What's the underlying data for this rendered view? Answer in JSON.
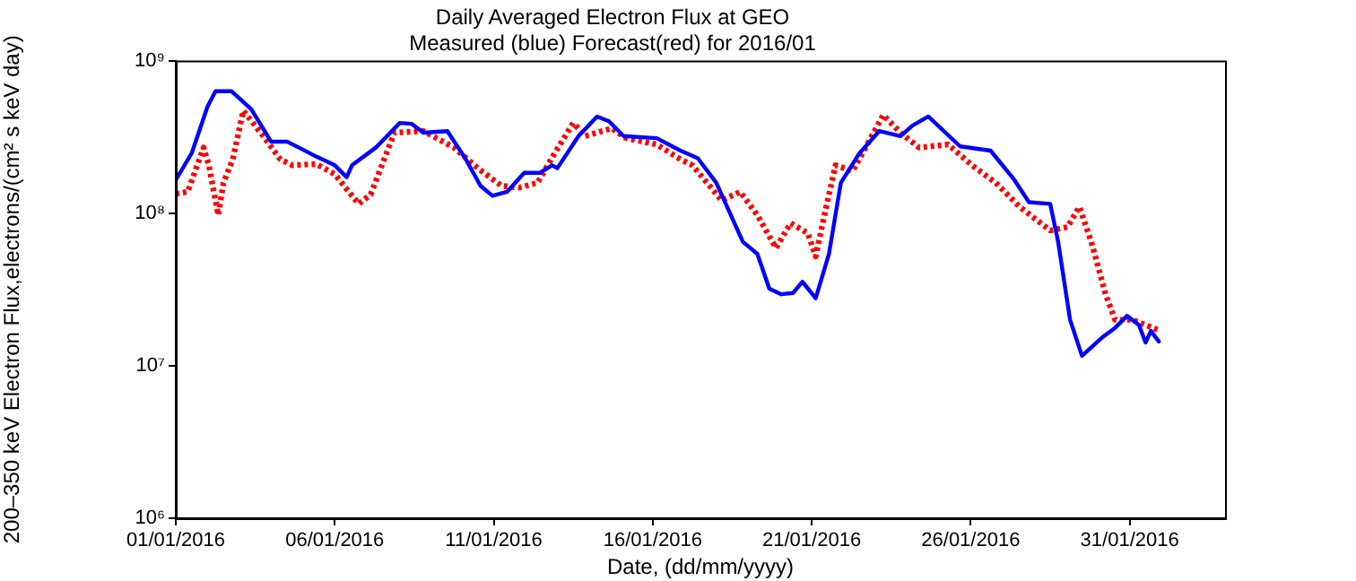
{
  "chart_data": {
    "type": "line",
    "title": "Daily Averaged Electron Flux at GEO",
    "subtitle": "Measured (blue) Forecast(red) for 2016/01",
    "xlabel": "Date, (dd/mm/yyyy)",
    "ylabel": "200–350 keV Electron Flux,electrons/(cm² s keV day)",
    "log": "y",
    "grid": false,
    "legend": false,
    "marker": "none",
    "xlim": [
      "2016-01-01",
      "2016-02-03"
    ],
    "xticks": [
      {
        "value": "2016-01-01",
        "label": "01/01/2016"
      },
      {
        "value": "2016-01-06",
        "label": "06/01/2016"
      },
      {
        "value": "2016-01-11",
        "label": "11/01/2016"
      },
      {
        "value": "2016-01-16",
        "label": "16/01/2016"
      },
      {
        "value": "2016-01-21",
        "label": "21/01/2016"
      },
      {
        "value": "2016-01-26",
        "label": "26/01/2016"
      },
      {
        "value": "2016-01-31",
        "label": "31/01/2016"
      }
    ],
    "ylim": [
      1000000,
      1000000000
    ],
    "yticks": [
      {
        "value": 1000000,
        "label": "10⁶"
      },
      {
        "value": 10000000,
        "label": "10⁷"
      },
      {
        "value": 100000000,
        "label": "10⁸"
      },
      {
        "value": 1000000000,
        "label": "10⁹"
      }
    ],
    "series": [
      {
        "color": "#0000ff",
        "line_style": "solid",
        "x": [
          "2016-01-01T00:00",
          "2016-01-01T12:00",
          "2016-01-02T00:00",
          "2016-01-02T06:00",
          "2016-01-02T18:00",
          "2016-01-03T09:00",
          "2016-01-04T00:00",
          "2016-01-04T12:00",
          "2016-01-04T21:00",
          "2016-01-05T10:00",
          "2016-01-06T00:00",
          "2016-01-06T09:00",
          "2016-01-06T13:00",
          "2016-01-07T07:00",
          "2016-01-08T01:00",
          "2016-01-08T10:00",
          "2016-01-08T19:00",
          "2016-01-09T13:00",
          "2016-01-10T03:00",
          "2016-01-10T14:00",
          "2016-01-10T23:00",
          "2016-01-11T10:00",
          "2016-01-11T23:00",
          "2016-01-12T11:00",
          "2016-01-12T20:00",
          "2016-01-13T00:00",
          "2016-01-13T16:00",
          "2016-01-14T06:00",
          "2016-01-14T15:00",
          "2016-01-15T02:00",
          "2016-01-16T03:00",
          "2016-01-16T21:00",
          "2016-01-17T10:00",
          "2016-01-18T00:00",
          "2016-01-18T20:00",
          "2016-01-19T07:00",
          "2016-01-19T16:00",
          "2016-01-20T01:00",
          "2016-01-20T10:00",
          "2016-01-20T17:00",
          "2016-01-21T03:00",
          "2016-01-21T13:00",
          "2016-01-21T22:00",
          "2016-01-22T12:00",
          "2016-01-23T03:00",
          "2016-01-23T19:00",
          "2016-01-24T04:00",
          "2016-01-24T16:00",
          "2016-01-25T16:00",
          "2016-01-26T15:00",
          "2016-01-27T09:00",
          "2016-01-27T20:00",
          "2016-01-28T12:00",
          "2016-01-28T18:00",
          "2016-01-29T03:00",
          "2016-01-29T12:00",
          "2016-01-30T04:00",
          "2016-01-30T13:00",
          "2016-01-30T22:00",
          "2016-01-31T07:00",
          "2016-01-31T12:00",
          "2016-01-31T16:00",
          "2016-01-31T22:00"
        ],
        "values": [
          165000000.0,
          247000000.0,
          500000000.0,
          630000000.0,
          630000000.0,
          480000000.0,
          294000000.0,
          294000000.0,
          269000000.0,
          235000000.0,
          206000000.0,
          172000000.0,
          206000000.0,
          269000000.0,
          390000000.0,
          385000000.0,
          337000000.0,
          345000000.0,
          225000000.0,
          151000000.0,
          130000000.0,
          138000000.0,
          184000000.0,
          184000000.0,
          206000000.0,
          197000000.0,
          320000000.0,
          430000000.0,
          400000000.0,
          320000000.0,
          310000000.0,
          257000000.0,
          229000000.0,
          158000000.0,
          65000000.0,
          54000000.0,
          32000000.0,
          29400000.0,
          30000000.0,
          35500000.0,
          27700000.0,
          54000000.0,
          158000000.0,
          247000000.0,
          345000000.0,
          320000000.0,
          375000000.0,
          430000000.0,
          274000000.0,
          257000000.0,
          165000000.0,
          118000000.0,
          115000000.0,
          65000000.0,
          20000000.0,
          11600000.0,
          15500000.0,
          17700000.0,
          21200000.0,
          18500000.0,
          14200000.0,
          16900000.0,
          14400000.0
        ]
      },
      {
        "color": "#ff0000",
        "line_style": "dotted",
        "x": [
          "2016-01-01T00:00",
          "2016-01-01T09:00",
          "2016-01-01T21:00",
          "2016-01-02T01:00",
          "2016-01-02T08:00",
          "2016-01-02T12:00",
          "2016-01-02T19:00",
          "2016-01-03T03:00",
          "2016-01-03T18:00",
          "2016-01-04T07:00",
          "2016-01-04T16:00",
          "2016-01-05T10:00",
          "2016-01-06T00:00",
          "2016-01-06T18:00",
          "2016-01-07T03:00",
          "2016-01-07T21:00",
          "2016-01-08T19:00",
          "2016-01-09T18:00",
          "2016-01-10T12:00",
          "2016-01-11T06:00",
          "2016-01-11T19:00",
          "2016-01-12T09:00",
          "2016-01-12T22:00",
          "2016-01-13T12:00",
          "2016-01-13T21:00",
          "2016-01-14T17:00",
          "2016-01-15T04:00",
          "2016-01-16T03:00",
          "2016-01-16T21:00",
          "2016-01-17T06:00",
          "2016-01-18T04:00",
          "2016-01-18T18:00",
          "2016-01-19T07:00",
          "2016-01-19T21:00",
          "2016-01-20T08:00",
          "2016-01-20T21:00",
          "2016-01-21T03:00",
          "2016-01-21T09:00",
          "2016-01-21T18:00",
          "2016-01-22T07:00",
          "2016-01-23T06:00",
          "2016-01-23T19:00",
          "2016-01-24T09:00",
          "2016-01-25T07:00",
          "2016-01-26T01:00",
          "2016-01-26T19:00",
          "2016-01-27T13:00",
          "2016-01-28T12:00",
          "2016-01-29T01:00",
          "2016-01-29T10:00",
          "2016-01-29T19:00",
          "2016-01-30T06:00",
          "2016-01-30T13:00",
          "2016-01-31T02:00",
          "2016-01-31T21:00"
        ],
        "values": [
          134000000.0,
          138000000.0,
          269000000.0,
          206000000.0,
          97000000.0,
          158000000.0,
          225000000.0,
          470000000.0,
          320000000.0,
          225000000.0,
          206000000.0,
          210000000.0,
          180000000.0,
          115000000.0,
          132000000.0,
          337000000.0,
          345000000.0,
          269000000.0,
          197000000.0,
          151000000.0,
          147000000.0,
          158000000.0,
          247000000.0,
          390000000.0,
          320000000.0,
          360000000.0,
          310000000.0,
          282000000.0,
          225000000.0,
          206000000.0,
          121000000.0,
          138000000.0,
          97000000.0,
          59000000.0,
          86000000.0,
          74000000.0,
          52000000.0,
          92000000.0,
          206000000.0,
          189000000.0,
          440000000.0,
          337000000.0,
          269000000.0,
          282000000.0,
          206000000.0,
          158000000.0,
          110000000.0,
          77000000.0,
          81000000.0,
          110000000.0,
          65000000.0,
          29000000.0,
          20000000.0,
          20000000.0,
          17200000.0
        ]
      }
    ]
  }
}
